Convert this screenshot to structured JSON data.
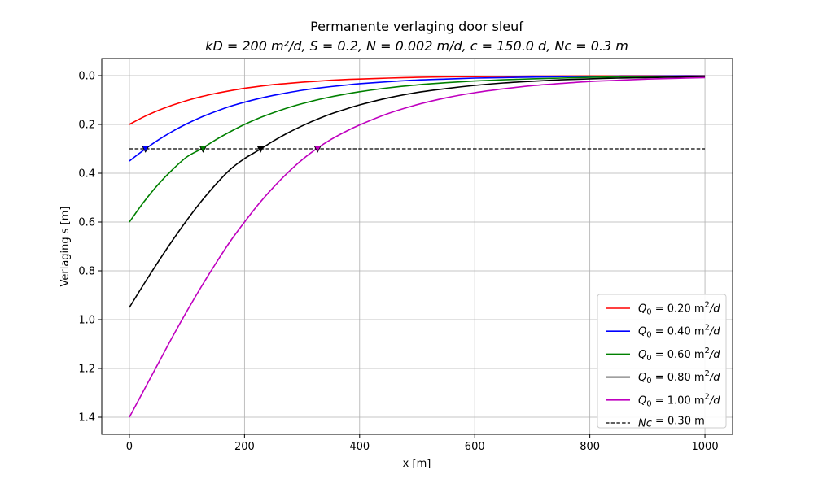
{
  "chart_data": {
    "type": "line",
    "title": "Permanente verlaging door sleuf",
    "subtitle": "kD = 200 m²/d, S = 0.2, N = 0.002 m/d, c = 150.0 d, Nc = 0.3 m",
    "xlabel": "x [m]",
    "ylabel": "Verlaging s [m]",
    "xlim": [
      -48,
      1048
    ],
    "ylim": [
      1.47,
      -0.07
    ],
    "y_inverted": true,
    "grid": true,
    "legend_position": "lower-right",
    "x_ticks": [
      0,
      200,
      400,
      600,
      800,
      1000
    ],
    "x_tick_labels": [
      "0",
      "200",
      "400",
      "600",
      "800",
      "1000"
    ],
    "y_ticks": [
      0.0,
      0.2,
      0.4,
      0.6,
      0.8,
      1.0,
      1.2,
      1.4
    ],
    "y_tick_labels": [
      "0.0",
      "0.2",
      "0.4",
      "0.6",
      "0.8",
      "1.0",
      "1.2",
      "1.4"
    ],
    "x": [
      0,
      25,
      50,
      75,
      100,
      125,
      150,
      175,
      200,
      225,
      250,
      275,
      300,
      325,
      350,
      375,
      400,
      450,
      500,
      550,
      600,
      650,
      700,
      750,
      800,
      850,
      900,
      950,
      1000
    ],
    "series": [
      {
        "name": "Q₀ = 0.20 m²/d",
        "legend_main": "Q",
        "legend_sub": "0",
        "legend_value": " = 0.20 m",
        "legend_sup": "2",
        "legend_unit": "/d",
        "color": "#ff0000",
        "style": "solid",
        "values": [
          0.2,
          0.169,
          0.143,
          0.121,
          0.102,
          0.086,
          0.073,
          0.062,
          0.052,
          0.044,
          0.037,
          0.032,
          0.027,
          0.023,
          0.019,
          0.016,
          0.014,
          0.01,
          0.007,
          0.005,
          0.004,
          0.003,
          0.002,
          0.0015,
          0.0011,
          0.0008,
          0.0006,
          0.0004,
          0.0003
        ]
      },
      {
        "name": "Q₀ = 0.40 m²/d",
        "legend_main": "Q",
        "legend_sub": "0",
        "legend_value": " = 0.40 m",
        "legend_sup": "2",
        "legend_unit": "/d",
        "color": "#0000ff",
        "style": "solid",
        "values": [
          0.35,
          0.305,
          0.264,
          0.228,
          0.197,
          0.17,
          0.147,
          0.126,
          0.109,
          0.094,
          0.081,
          0.07,
          0.06,
          0.052,
          0.045,
          0.039,
          0.033,
          0.025,
          0.018,
          0.014,
          0.01,
          0.008,
          0.006,
          0.004,
          0.003,
          0.002,
          0.0017,
          0.0012,
          0.0009
        ]
      },
      {
        "name": "Q₀ = 0.60 m²/d",
        "legend_main": "Q",
        "legend_sub": "0",
        "legend_value": " = 0.60 m",
        "legend_sup": "2",
        "legend_unit": "/d",
        "color": "#008000",
        "style": "solid",
        "values": [
          0.6,
          0.518,
          0.446,
          0.385,
          0.333,
          0.3,
          0.263,
          0.23,
          0.2,
          0.174,
          0.152,
          0.132,
          0.115,
          0.1,
          0.087,
          0.076,
          0.066,
          0.05,
          0.038,
          0.029,
          0.022,
          0.017,
          0.013,
          0.01,
          0.007,
          0.005,
          0.004,
          0.003,
          0.002
        ]
      },
      {
        "name": "Q₀ = 0.80 m²/d",
        "legend_main": "Q",
        "legend_sub": "0",
        "legend_value": " = 0.80 m",
        "legend_sup": "2",
        "legend_unit": "/d",
        "color": "#000000",
        "style": "solid",
        "values": [
          0.95,
          0.855,
          0.763,
          0.675,
          0.592,
          0.515,
          0.446,
          0.385,
          0.34,
          0.305,
          0.268,
          0.235,
          0.206,
          0.18,
          0.157,
          0.138,
          0.12,
          0.091,
          0.069,
          0.053,
          0.04,
          0.03,
          0.023,
          0.017,
          0.013,
          0.01,
          0.008,
          0.006,
          0.004
        ]
      },
      {
        "name": "Q₀ = 1.00 m²/d",
        "legend_main": "Q",
        "legend_sub": "0",
        "legend_value": " = 1.00 m",
        "legend_sup": "2",
        "legend_unit": "/d",
        "color": "#bf00bf",
        "style": "solid",
        "values": [
          1.4,
          1.29,
          1.18,
          1.07,
          0.965,
          0.865,
          0.77,
          0.68,
          0.6,
          0.525,
          0.458,
          0.398,
          0.345,
          0.3,
          0.262,
          0.23,
          0.202,
          0.155,
          0.119,
          0.091,
          0.07,
          0.054,
          0.041,
          0.032,
          0.024,
          0.019,
          0.014,
          0.011,
          0.008
        ]
      },
      {
        "name": "Nc = 0.30 m",
        "legend_main": "Nc",
        "legend_sub": "",
        "legend_value": " = 0.30 m",
        "legend_sup": "",
        "legend_unit": "",
        "color": "#000000",
        "style": "dashed",
        "values": [
          0.3,
          0.3,
          0.3,
          0.3,
          0.3,
          0.3,
          0.3,
          0.3,
          0.3,
          0.3,
          0.3,
          0.3,
          0.3,
          0.3,
          0.3,
          0.3,
          0.3,
          0.3,
          0.3,
          0.3,
          0.3,
          0.3,
          0.3,
          0.3,
          0.3,
          0.3,
          0.3,
          0.3,
          0.3
        ]
      }
    ],
    "markers": [
      {
        "x": 28,
        "y": 0.3,
        "color": "#0000ff"
      },
      {
        "x": 128,
        "y": 0.3,
        "color": "#008000"
      },
      {
        "x": 228,
        "y": 0.3,
        "color": "#000000"
      },
      {
        "x": 327,
        "y": 0.3,
        "color": "#bf00bf"
      }
    ]
  }
}
